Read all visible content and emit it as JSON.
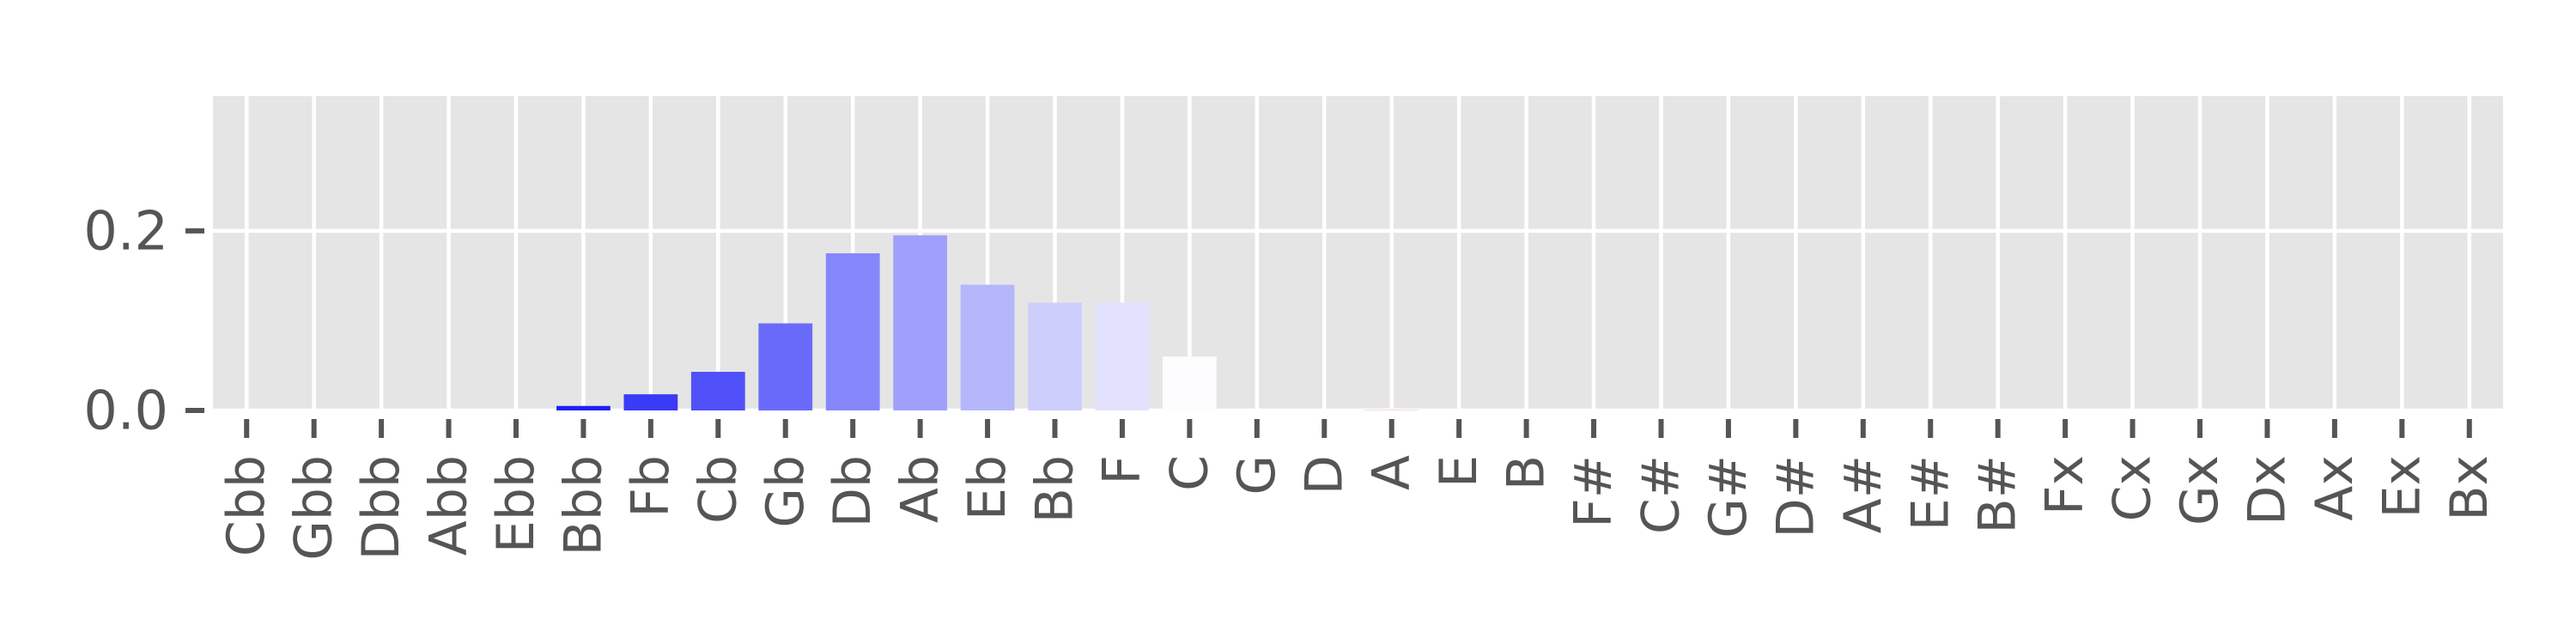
{
  "chart_data": {
    "type": "bar",
    "title": "",
    "xlabel": "",
    "ylabel": "",
    "ylim": [
      0,
      0.35
    ],
    "yticks": [
      {
        "value": 0.0,
        "label": "0.0"
      },
      {
        "value": 0.2,
        "label": "0.2"
      }
    ],
    "grid": true,
    "legend": "none",
    "categories": [
      "Cbb",
      "Gbb",
      "Dbb",
      "Abb",
      "Ebb",
      "Bbb",
      "Fb",
      "Cb",
      "Gb",
      "Db",
      "Ab",
      "Eb",
      "Bb",
      "F",
      "C",
      "G",
      "D",
      "A",
      "E",
      "B",
      "F#",
      "C#",
      "G#",
      "D#",
      "A#",
      "E#",
      "B#",
      "Fx",
      "Cx",
      "Gx",
      "Dx",
      "Ax",
      "Ex",
      "Bx"
    ],
    "values": [
      0,
      0,
      0,
      0,
      0,
      0.005,
      0.018,
      0.043,
      0.097,
      0.175,
      0.195,
      0.14,
      0.12,
      0.12,
      0.06,
      0,
      0,
      0.001,
      0,
      0,
      0,
      0,
      0,
      0,
      0,
      0,
      0,
      0,
      0,
      0,
      0,
      0,
      0,
      0
    ],
    "bar_colors": [
      "#ffffff",
      "#ffffff",
      "#ffffff",
      "#ffffff",
      "#ffffff",
      "#2020f5",
      "#3a3af7",
      "#5050f8",
      "#6a6afa",
      "#8686fb",
      "#a0a0fc",
      "#b6b6fd",
      "#cecefd",
      "#e2e2fe",
      "#fdfdff",
      "#ffffff",
      "#ffffff",
      "#fad6d6",
      "#ffffff",
      "#ffffff",
      "#ffffff",
      "#ffffff",
      "#ffffff",
      "#ffffff",
      "#ffffff",
      "#ffffff",
      "#ffffff",
      "#ffffff",
      "#ffffff",
      "#ffffff",
      "#ffffff",
      "#ffffff",
      "#ffffff",
      "#ffffff"
    ],
    "colors": {
      "plot_background": "#e5e5e5",
      "grid": "#ffffff",
      "tick_text": "#555555",
      "tick_mark": "#555555"
    }
  }
}
